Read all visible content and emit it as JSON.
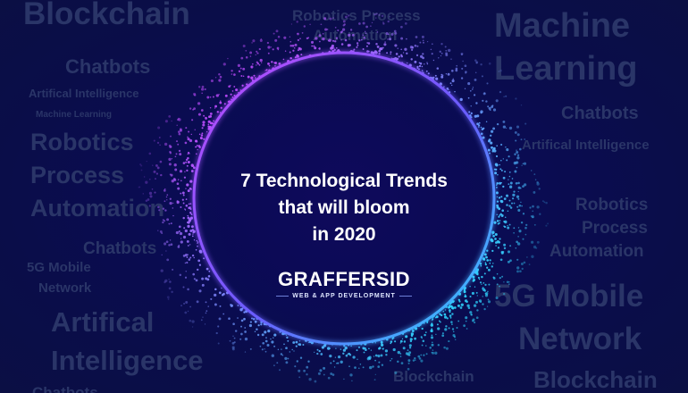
{
  "background_words": {
    "blockchain_tl": "Blockchain",
    "rpa_top_1": "Robotics Process",
    "rpa_top_2": "Automation",
    "machine": "Machine",
    "learning": "Learning",
    "chatbots_l1": "Chatbots",
    "ai_l1": "Artifical Intelligence",
    "ml_l": "Machine Learning",
    "chatbots_r1": "Chatbots",
    "robotics_l": "Robotics",
    "process_l": "Process",
    "automation_l": "Automation",
    "ai_r": "Artifical Intelligence",
    "robotics_r": "Robotics",
    "process_r": "Process",
    "automation_r": "Automation",
    "chatbots_l2": "Chatbots",
    "fiveg_l1": "5G Mobile",
    "network_l": "Network",
    "fiveg_r1": "5G Mobile",
    "network_r": "Network",
    "artifical_l": "Artifical",
    "intelligence_l": "Intelligence",
    "blockchain_bm": "Blockchain",
    "blockchain_br": "Blockchain",
    "chatbots_bl": "Chatbots"
  },
  "headline": {
    "line1": "7 Technological Trends",
    "line2": "that will bloom",
    "line3": "in 2020"
  },
  "logo": {
    "name": "GRAFFERSID",
    "tagline": "WEB & APP DEVELOPMENT"
  },
  "colors": {
    "background": "#0b0d4e",
    "ring_purple": "#c04bff",
    "ring_cyan": "#2fd6ff",
    "watermark_text": "#2a3568"
  }
}
